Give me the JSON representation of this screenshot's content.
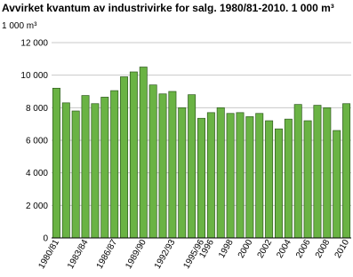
{
  "chart_data": {
    "type": "bar",
    "title": "Avvirket kvantum av industrivirke for salg. 1980/81-2010. 1 000 m³",
    "y_label": "1 000 m³",
    "categories": [
      "1980/81",
      null,
      null,
      "1983/84",
      null,
      null,
      "1986/87",
      null,
      null,
      "1989/90",
      null,
      null,
      "1992/93",
      null,
      null,
      "1995/96",
      "1996",
      null,
      "1998",
      null,
      "2000",
      null,
      "2002",
      null,
      "2004",
      null,
      "2006",
      null,
      "2008",
      null,
      "2010"
    ],
    "values": [
      9200,
      8300,
      7800,
      8750,
      8250,
      8650,
      9050,
      9900,
      10200,
      10500,
      9400,
      8850,
      9000,
      8000,
      8800,
      7350,
      7700,
      8000,
      7650,
      7700,
      7450,
      7650,
      7200,
      6700,
      7300,
      8200,
      7200,
      8150,
      8000,
      6600,
      8250
    ],
    "color": "#6ab344",
    "ylim": [
      0,
      12000
    ],
    "yticks": [
      0,
      {
        "value": 2000,
        "label": "2 000"
      },
      {
        "value": 4000,
        "label": "4 000"
      },
      {
        "value": 6000,
        "label": "6 000"
      },
      {
        "value": 8000,
        "label": "8 000"
      },
      {
        "value": 10000,
        "label": "10 000"
      },
      {
        "value": 12000,
        "label": "12 000"
      }
    ],
    "grid": true
  }
}
